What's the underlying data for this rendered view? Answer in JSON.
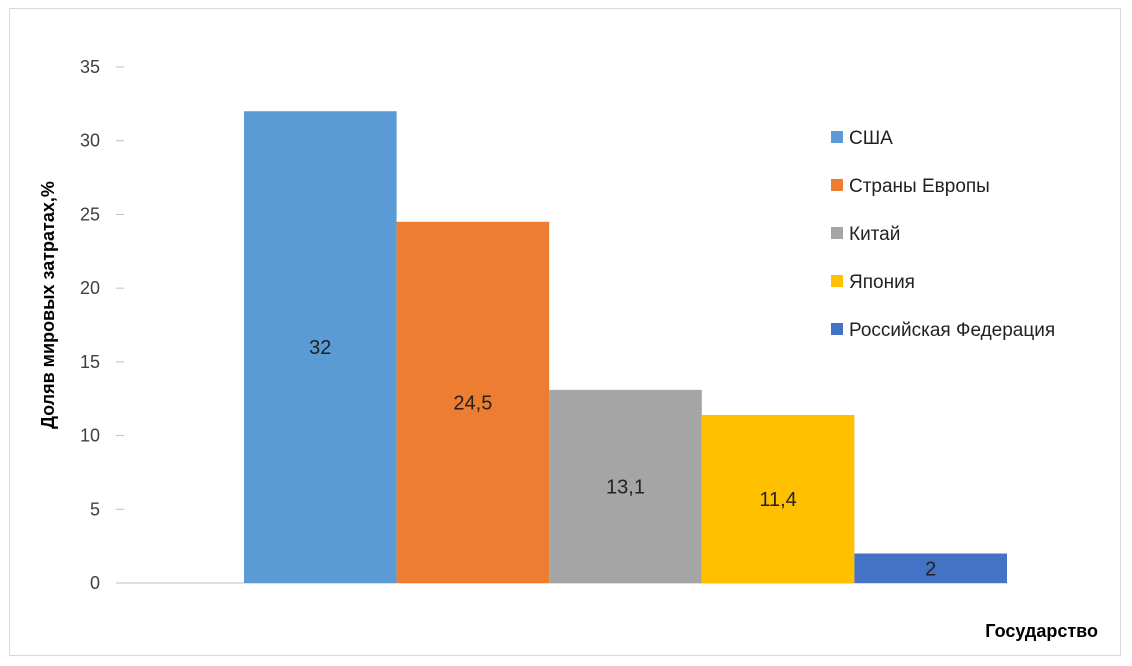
{
  "chart_data": {
    "type": "bar",
    "title": "",
    "xlabel": "Государство",
    "ylabel": "Доляв  мировых затратах,%",
    "ylim": [
      0,
      35
    ],
    "yticks": [
      0,
      5,
      10,
      15,
      20,
      25,
      30,
      35
    ],
    "grid": false,
    "legend_position": "right",
    "series": [
      {
        "name": "США",
        "value": 32,
        "label": "32",
        "color": "#5B9BD5"
      },
      {
        "name": "Страны Европы",
        "value": 24.5,
        "label": "24,5",
        "color": "#ED7D31"
      },
      {
        "name": "Китай",
        "value": 13.1,
        "label": "13,1",
        "color": "#A5A5A5"
      },
      {
        "name": "Япония",
        "value": 11.4,
        "label": "11,4",
        "color": "#FFC000"
      },
      {
        "name": "Российская Федерация",
        "value": 2,
        "label": "2",
        "color": "#4472C4"
      }
    ]
  }
}
